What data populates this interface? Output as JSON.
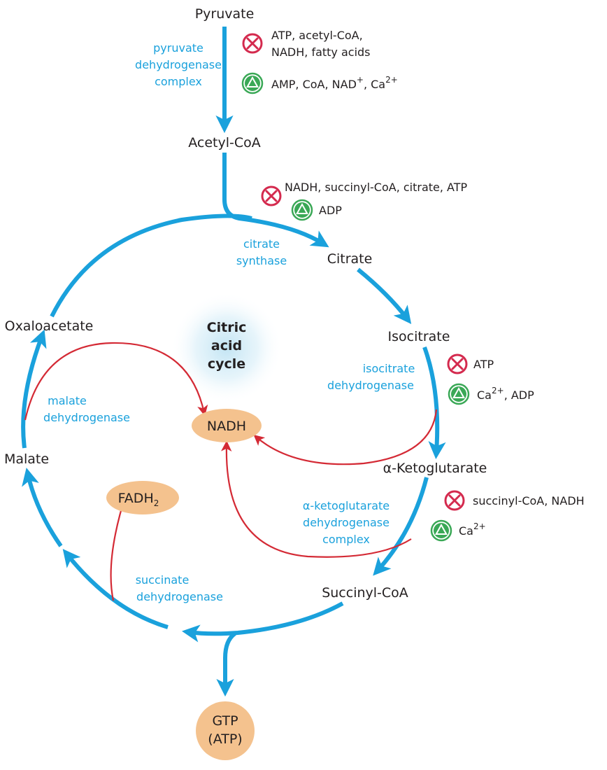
{
  "colors": {
    "pathway": "#1aa1dc",
    "product_arrow": "#d42a35",
    "inhibitor": "#d42a4e",
    "activator": "#3aa856",
    "product_fill": "#f4c28e"
  },
  "center_title": [
    "Citric",
    "acid",
    "cycle"
  ],
  "metabolites": {
    "pyruvate": "Pyruvate",
    "acetyl_coa": "Acetyl-CoA",
    "citrate": "Citrate",
    "isocitrate": "Isocitrate",
    "alpha_ketoglutarate": "α-Ketoglutarate",
    "succinyl_coa": "Succinyl-CoA",
    "malate": "Malate",
    "oxaloacetate": "Oxaloacetate"
  },
  "enzymes": {
    "pdh": [
      "pyruvate",
      "dehydrogenase",
      "complex"
    ],
    "citrate_synthase": [
      "citrate",
      "synthase"
    ],
    "isocitrate_dh": [
      "isocitrate",
      "dehydrogenase"
    ],
    "akg_dh": [
      "α-ketoglutarate",
      "dehydrogenase",
      "complex"
    ],
    "succinate_dh": [
      "succinate",
      "dehydrogenase"
    ],
    "malate_dh": [
      "malate",
      "dehydrogenase"
    ]
  },
  "products": {
    "nadh": "NADH",
    "fadh2_base": "FADH",
    "fadh2_sub": "2",
    "gtp_line1": "GTP",
    "gtp_line2": "(ATP)"
  },
  "regulators": {
    "pdh_inhibitors_line1": "ATP, acetyl-CoA,",
    "pdh_inhibitors_line2": "NADH, fatty acids",
    "pdh_activators_text": "AMP, CoA, NAD",
    "pdh_activators_sup": "+",
    "pdh_activators_ca": ", Ca",
    "pdh_activators_ca_sup": "2+",
    "cs_inhibitors": "NADH, succinyl-CoA, citrate, ATP",
    "cs_activators": "ADP",
    "idh_inhibitors": "ATP",
    "idh_activators_ca": "Ca",
    "idh_activators_ca_sup": "2+",
    "idh_activators_rest": ", ADP",
    "akgdh_inhibitors": "succinyl-CoA, NADH",
    "akgdh_activators_ca": "Ca",
    "akgdh_activators_ca_sup": "2+"
  }
}
